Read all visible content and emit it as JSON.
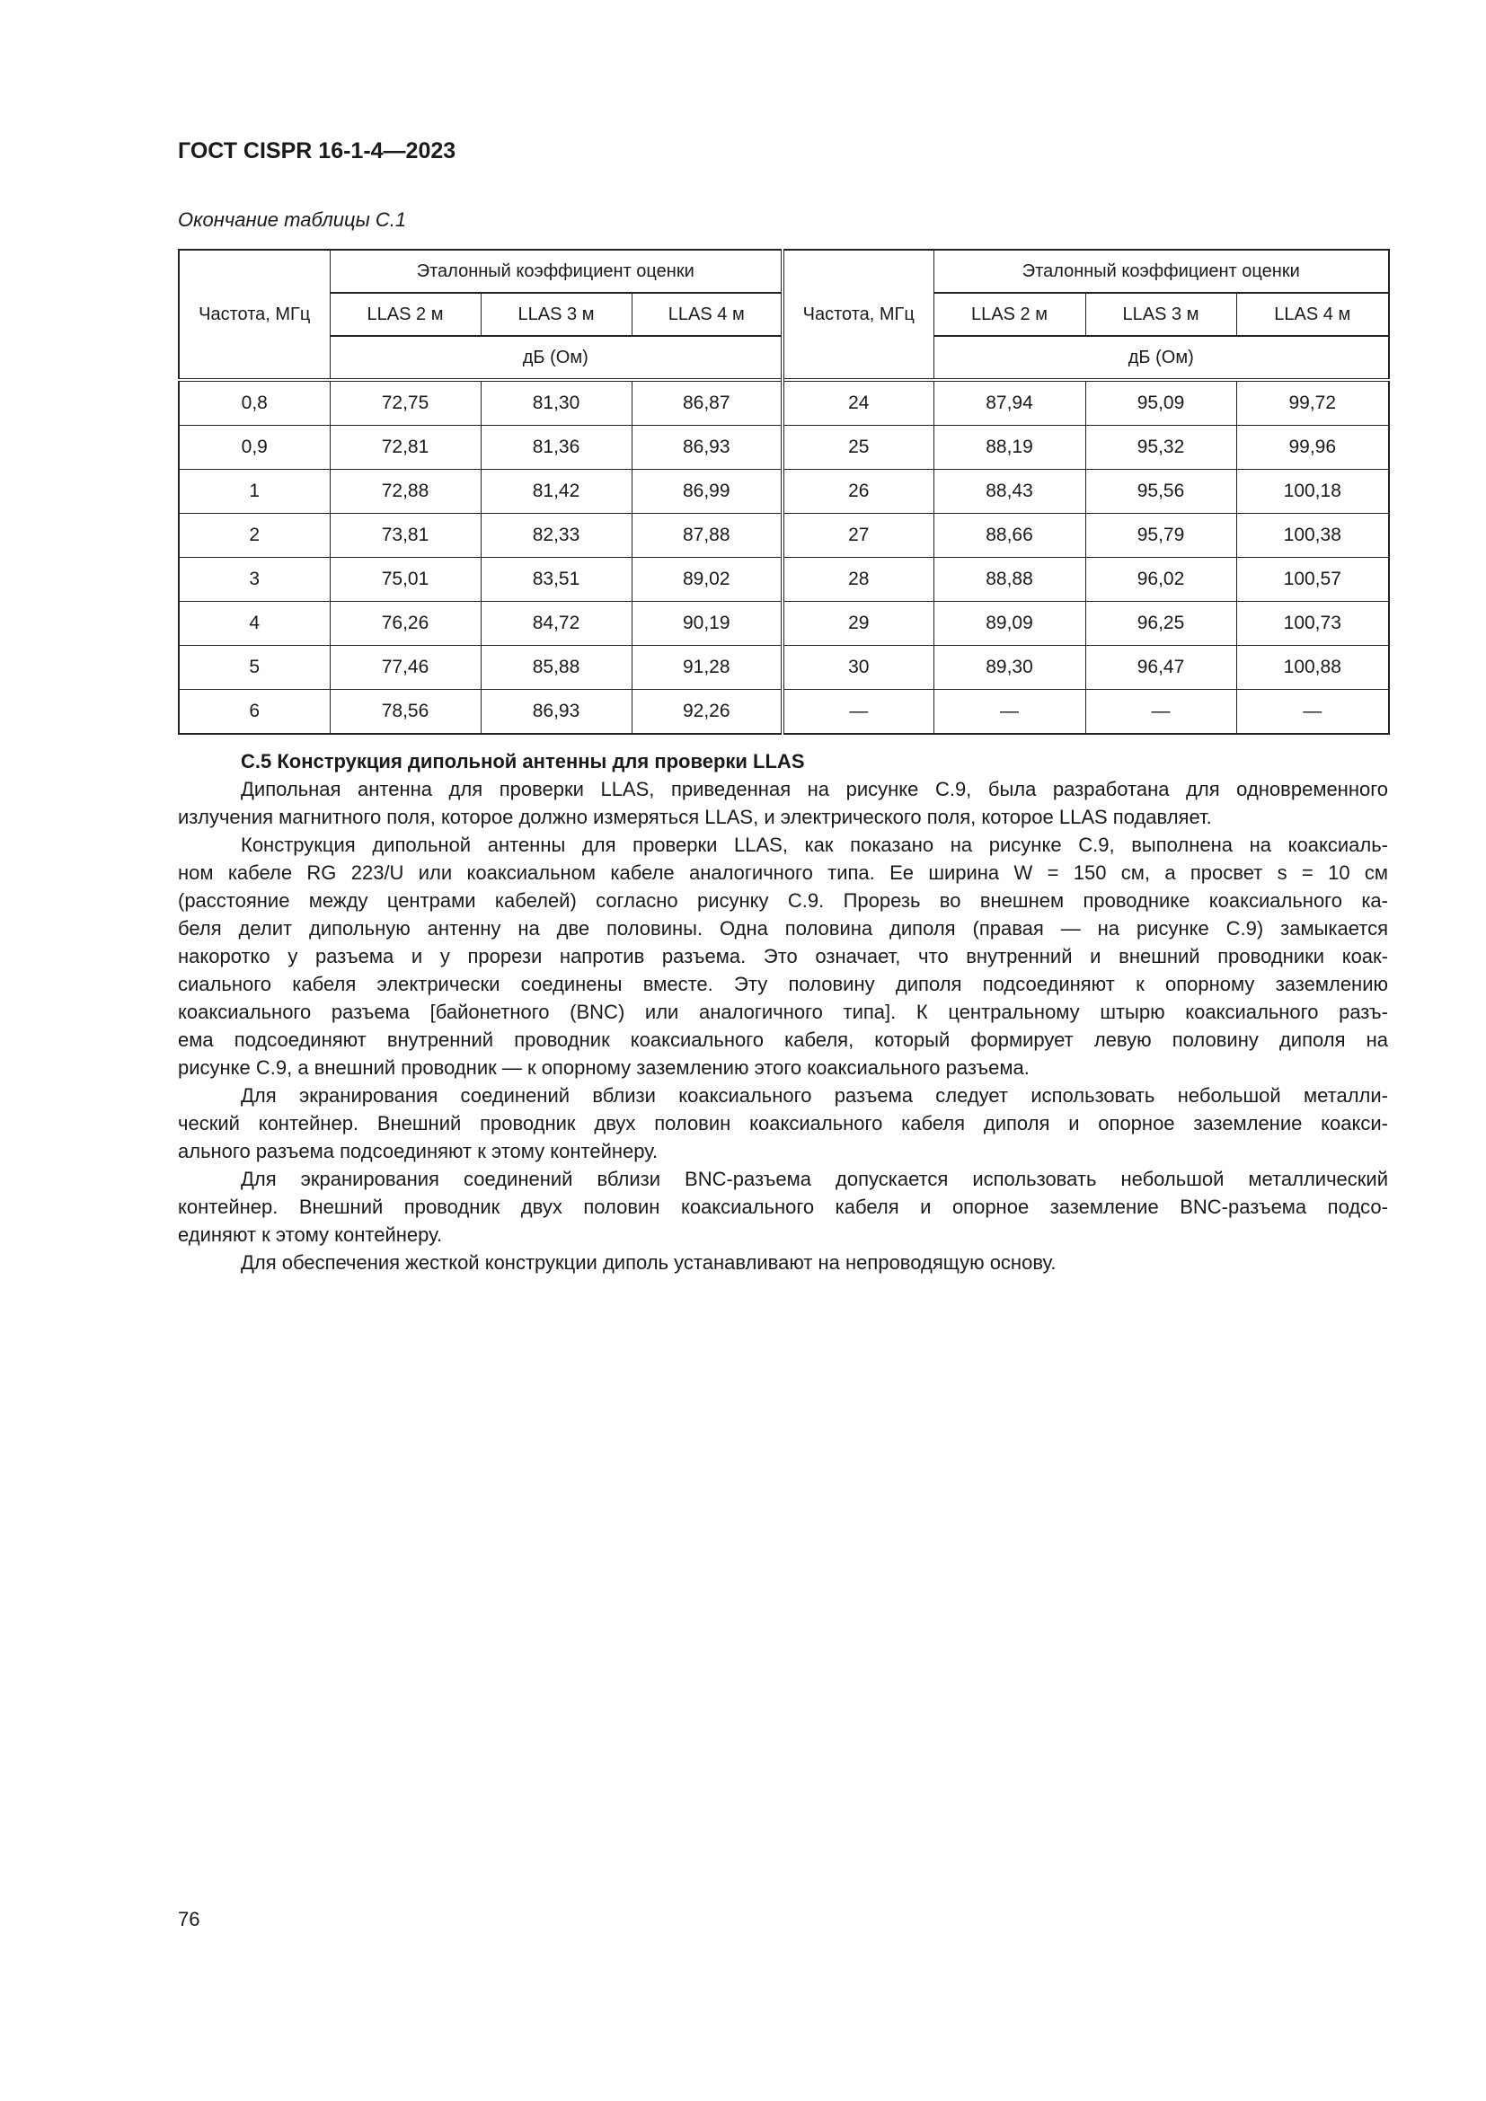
{
  "header": {
    "doc_title": "ГОСТ CISPR 16-1-4—2023"
  },
  "table": {
    "caption": "Окончание таблицы С.1",
    "freq_header": "Частота, МГц",
    "group_header": "Эталонный коэффициент оценки",
    "columns": [
      "LLAS 2 м",
      "LLAS 3 м",
      "LLAS 4 м"
    ],
    "unit": "дБ (Ом)",
    "left_rows": [
      [
        "0,8",
        "72,75",
        "81,30",
        "86,87"
      ],
      [
        "0,9",
        "72,81",
        "81,36",
        "86,93"
      ],
      [
        "1",
        "72,88",
        "81,42",
        "86,99"
      ],
      [
        "2",
        "73,81",
        "82,33",
        "87,88"
      ],
      [
        "3",
        "75,01",
        "83,51",
        "89,02"
      ],
      [
        "4",
        "76,26",
        "84,72",
        "90,19"
      ],
      [
        "5",
        "77,46",
        "85,88",
        "91,28"
      ],
      [
        "6",
        "78,56",
        "86,93",
        "92,26"
      ]
    ],
    "right_rows": [
      [
        "24",
        "87,94",
        "95,09",
        "99,72"
      ],
      [
        "25",
        "88,19",
        "95,32",
        "99,96"
      ],
      [
        "26",
        "88,43",
        "95,56",
        "100,18"
      ],
      [
        "27",
        "88,66",
        "95,79",
        "100,38"
      ],
      [
        "28",
        "88,88",
        "96,02",
        "100,57"
      ],
      [
        "29",
        "89,09",
        "96,25",
        "100,73"
      ],
      [
        "30",
        "89,30",
        "96,47",
        "100,88"
      ],
      [
        "—",
        "—",
        "—",
        "—"
      ]
    ]
  },
  "section": {
    "heading": "С.5 Конструкция дипольной антенны для проверки LLAS",
    "paragraphs": [
      [
        "Дипольная антенна для проверки LLAS, приведенная на рисунке С.9, была разработана для одновременного",
        "излучения магнитного поля, которое должно измеряться LLAS, и электрического поля, которое LLAS подавляет."
      ],
      [
        "Конструкция дипольной антенны для проверки LLAS, как показано на рисунке С.9, выполнена на коаксиаль-",
        "ном кабеле RG 223/U или коаксиальном кабеле аналогичного типа. Ее ширина W = 150 см, а просвет s = 10 см",
        "(расстояние между центрами кабелей) согласно рисунку С.9. Прорезь во внешнем проводнике коаксиального ка-",
        "беля делит дипольную антенну на две половины. Одна половина диполя (правая — на рисунке С.9) замыкается",
        "накоротко у разъема и у прорези напротив разъема. Это означает, что внутренний и внешний проводники коак-",
        "сиального кабеля электрически соединены вместе. Эту половину диполя подсоединяют к опорному заземлению",
        "коаксиального разъема [байонетного (BNC) или аналогичного типа]. К центральному штырю коаксиального разъ-",
        "ема подсоединяют внутренний проводник коаксиального кабеля, который формирует левую половину диполя на",
        "рисунке С.9, а внешний проводник — к опорному заземлению этого коаксиального разъема."
      ],
      [
        "Для экранирования соединений вблизи коаксиального разъема следует использовать небольшой металли-",
        "ческий контейнер. Внешний проводник двух половин коаксиального кабеля диполя и опорное заземление коакси-",
        "ального разъема подсоединяют к этому контейнеру."
      ],
      [
        "Для экранирования соединений вблизи BNC-разъема допускается использовать небольшой металлический",
        "контейнер. Внешний проводник двух половин коаксиального кабеля и опорное заземление BNC-разъема подсо-",
        "единяют к этому контейнеру."
      ],
      [
        "Для обеспечения жесткой конструкции диполь устанавливают на непроводящую основу."
      ]
    ]
  },
  "footer": {
    "page_number": "76"
  }
}
